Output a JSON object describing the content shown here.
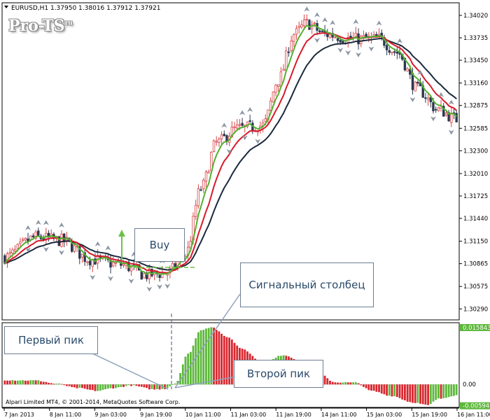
{
  "header": {
    "symbol": "EURUSD,H1",
    "ohlc": "1.37950 1.38016 1.37912 1.37921"
  },
  "watermark": "Pro-TS",
  "watermark_suffix": "ru",
  "copyright": "Alpari Limited MT4, © 2001-2014, MetaQuotes Software Corp.",
  "callouts": {
    "buy": "Buy",
    "signal": "Сигнальный столбец",
    "first_peak": "Первый пик",
    "second_peak": "Второй пик"
  },
  "colors": {
    "bull": "#d6464a",
    "bear": "#2b3850",
    "ma_fast": "#54b030",
    "ma_mid": "#d81a2a",
    "ma_slow": "#1c2a3d",
    "hist_up": "#5cb83a",
    "hist_down": "#d8262e",
    "callout_line": "#90a2bc"
  },
  "chart_data": {
    "type": "candlestick",
    "price_axis": {
      "ticks": [
        "1.34020",
        "1.33735",
        "1.33450",
        "1.33160",
        "1.32875",
        "1.32585",
        "1.32300",
        "1.32010",
        "1.31725",
        "1.31440",
        "1.31150",
        "1.30865",
        "1.30575",
        "1.30290"
      ],
      "ylim": [
        1.3015,
        1.3418
      ]
    },
    "indicator_axis": {
      "ticks": [
        "0.015843",
        "0.00",
        "-0.005946"
      ],
      "ylim": [
        -0.0064,
        0.0172
      ]
    },
    "time_axis": [
      "7 Jan 2013",
      "8 Jan 11:00",
      "9 Jan 03:00",
      "9 Jan 19:00",
      "10 Jan 11:00",
      "11 Jan 03:00",
      "11 Jan 19:00",
      "14 Jan 11:00",
      "15 Jan 03:00",
      "15 Jan 19:00",
      "16 Jan 11:00"
    ],
    "price_path": [
      [
        0,
        1.3095
      ],
      [
        12,
        1.312
      ],
      [
        22,
        1.3116
      ],
      [
        33,
        1.3092
      ],
      [
        45,
        1.3085
      ],
      [
        55,
        1.3072
      ],
      [
        63,
        1.3075
      ],
      [
        70,
        1.3098
      ],
      [
        76,
        1.3182
      ],
      [
        82,
        1.324
      ],
      [
        90,
        1.3258
      ],
      [
        100,
        1.3262
      ],
      [
        106,
        1.332
      ],
      [
        112,
        1.3378
      ],
      [
        117,
        1.3392
      ],
      [
        124,
        1.3378
      ],
      [
        135,
        1.3372
      ],
      [
        145,
        1.3372
      ],
      [
        152,
        1.3355
      ],
      [
        160,
        1.3308
      ],
      [
        168,
        1.3282
      ],
      [
        175,
        1.327
      ]
    ],
    "hist_path": [
      [
        0,
        0.0012
      ],
      [
        12,
        0.0011
      ],
      [
        20,
        0.0002
      ],
      [
        28,
        -0.001
      ],
      [
        36,
        -0.0018
      ],
      [
        42,
        -0.001
      ],
      [
        49,
        -0.0003
      ],
      [
        58,
        -0.0014
      ],
      [
        62,
        -0.0012
      ],
      [
        66,
        0.0003
      ],
      [
        71,
        0.0085
      ],
      [
        76,
        0.0152
      ],
      [
        80,
        0.016
      ],
      [
        86,
        0.0133
      ],
      [
        92,
        0.01
      ],
      [
        100,
        0.0058
      ],
      [
        108,
        0.0082
      ],
      [
        114,
        0.0068
      ],
      [
        120,
        0.004
      ],
      [
        128,
        0.0006
      ],
      [
        136,
        0.0005
      ],
      [
        142,
        -0.0018
      ],
      [
        150,
        -0.0032
      ],
      [
        158,
        -0.005
      ],
      [
        164,
        -0.0058
      ],
      [
        168,
        -0.004
      ],
      [
        175,
        -0.003
      ]
    ],
    "ma_periods": {
      "fast": 5,
      "mid": 11,
      "slow": 21
    }
  }
}
